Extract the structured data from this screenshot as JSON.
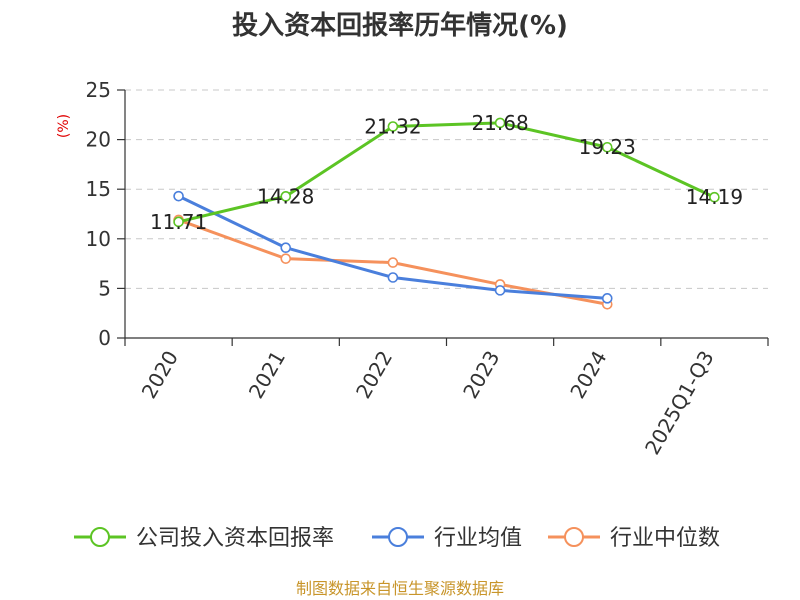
{
  "chart_data": {
    "type": "line",
    "title": "投入资本回报率历年情况(%)",
    "ylabel": "(%)",
    "xlabel": "",
    "categories": [
      "2020",
      "2021",
      "2022",
      "2023",
      "2024",
      "2025Q1-Q3"
    ],
    "ylim": [
      0,
      25
    ],
    "yticks": [
      0,
      5,
      10,
      15,
      20,
      25
    ],
    "grid": true,
    "legend_position": "bottom",
    "series": [
      {
        "name": "公司投入资本回报率",
        "color": "#5cc424",
        "values": [
          11.71,
          14.28,
          21.32,
          21.68,
          19.23,
          14.19
        ],
        "labels": [
          "11.71",
          "14.28",
          "21.32",
          "21.68",
          "19.23",
          "14.19"
        ]
      },
      {
        "name": "行业均值",
        "color": "#4a7fdc",
        "values": [
          14.3,
          9.1,
          6.1,
          4.8,
          4.0,
          null
        ]
      },
      {
        "name": "行业中位数",
        "color": "#f5915c",
        "values": [
          11.9,
          8.0,
          7.6,
          5.4,
          3.4,
          null
        ]
      }
    ]
  },
  "source": "制图数据来自恒生聚源数据库"
}
